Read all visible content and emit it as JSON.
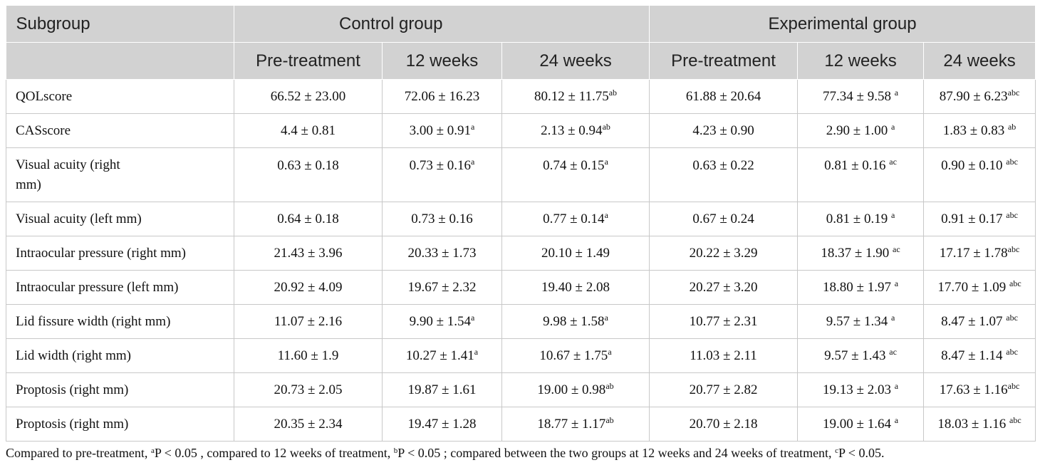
{
  "header": {
    "subgroup": "Subgroup",
    "control_group": "Control group",
    "experimental_group": "Experimental group",
    "columns": [
      "Pre-treatment",
      "12 weeks",
      "24 weeks",
      "Pre-treatment",
      "12 weeks",
      "24 weeks"
    ]
  },
  "rows": [
    {
      "label": "QOLscore",
      "cells": [
        {
          "v": "66.52 ± 23.00",
          "s": ""
        },
        {
          "v": "72.06 ± 16.23",
          "s": ""
        },
        {
          "v": "80.12 ± 11.75",
          "s": "ab"
        },
        {
          "v": "61.88 ± 20.64",
          "s": ""
        },
        {
          "v": "77.34 ± 9.58 ",
          "s": "a"
        },
        {
          "v": "87.90 ± 6.23",
          "s": "abc"
        }
      ]
    },
    {
      "label": "CASscore",
      "cells": [
        {
          "v": "4.4 ± 0.81",
          "s": ""
        },
        {
          "v": "3.00 ± 0.91",
          "s": "a"
        },
        {
          "v": "2.13 ± 0.94",
          "s": "ab"
        },
        {
          "v": "4.23 ± 0.90",
          "s": ""
        },
        {
          "v": "2.90 ± 1.00 ",
          "s": "a"
        },
        {
          "v": "1.83 ± 0.83 ",
          "s": "ab"
        }
      ]
    },
    {
      "label": "Visual acuity (right mm)",
      "cells": [
        {
          "v": "0.63 ± 0.18",
          "s": ""
        },
        {
          "v": "0.73 ± 0.16",
          "s": "a"
        },
        {
          "v": "0.74 ± 0.15",
          "s": "a"
        },
        {
          "v": "0.63 ± 0.22",
          "s": ""
        },
        {
          "v": "0.81 ± 0.16 ",
          "s": "ac"
        },
        {
          "v": "0.90 ± 0.10 ",
          "s": "abc"
        }
      ]
    },
    {
      "label": "Visual acuity (left mm)",
      "cells": [
        {
          "v": "0.64 ± 0.18",
          "s": ""
        },
        {
          "v": "0.73 ± 0.16",
          "s": ""
        },
        {
          "v": "0.77 ± 0.14",
          "s": "a"
        },
        {
          "v": "0.67 ± 0.24",
          "s": ""
        },
        {
          "v": "0.81 ± 0.19 ",
          "s": "a"
        },
        {
          "v": "0.91 ± 0.17 ",
          "s": "abc"
        }
      ]
    },
    {
      "label": "Intraocular pressure (right mm)",
      "cells": [
        {
          "v": "21.43 ± 3.96",
          "s": ""
        },
        {
          "v": "20.33 ± 1.73",
          "s": ""
        },
        {
          "v": "20.10 ± 1.49",
          "s": ""
        },
        {
          "v": "20.22 ± 3.29",
          "s": ""
        },
        {
          "v": "18.37 ± 1.90 ",
          "s": "ac"
        },
        {
          "v": "17.17 ± 1.78",
          "s": "abc"
        }
      ]
    },
    {
      "label": "Intraocular pressure (left mm)",
      "cells": [
        {
          "v": "20.92 ± 4.09",
          "s": ""
        },
        {
          "v": "19.67 ± 2.32",
          "s": ""
        },
        {
          "v": "19.40 ± 2.08",
          "s": ""
        },
        {
          "v": "20.27 ± 3.20",
          "s": ""
        },
        {
          "v": "18.80 ± 1.97 ",
          "s": "a"
        },
        {
          "v": "17.70 ± 1.09 ",
          "s": "abc"
        }
      ]
    },
    {
      "label": "Lid fissure width (right mm)",
      "cells": [
        {
          "v": "11.07 ± 2.16",
          "s": ""
        },
        {
          "v": "9.90 ± 1.54",
          "s": "a"
        },
        {
          "v": "9.98 ± 1.58",
          "s": "a"
        },
        {
          "v": "10.77 ± 2.31",
          "s": ""
        },
        {
          "v": "9.57 ± 1.34 ",
          "s": "a"
        },
        {
          "v": "8.47 ± 1.07 ",
          "s": "abc"
        }
      ]
    },
    {
      "label": "Lid width (right mm)",
      "cells": [
        {
          "v": "11.60 ± 1.9",
          "s": ""
        },
        {
          "v": "10.27 ± 1.41",
          "s": "a"
        },
        {
          "v": "10.67 ± 1.75",
          "s": "a"
        },
        {
          "v": "11.03 ± 2.11",
          "s": ""
        },
        {
          "v": "9.57 ± 1.43 ",
          "s": "ac"
        },
        {
          "v": "8.47 ± 1.14 ",
          "s": "abc"
        }
      ]
    },
    {
      "label": "Proptosis (right mm)",
      "cells": [
        {
          "v": "20.73 ± 2.05",
          "s": ""
        },
        {
          "v": "19.87 ± 1.61",
          "s": ""
        },
        {
          "v": "19.00 ± 0.98",
          "s": "ab"
        },
        {
          "v": "20.77 ± 2.82",
          "s": ""
        },
        {
          "v": "19.13 ± 2.03 ",
          "s": "a"
        },
        {
          "v": "17.63 ± 1.16",
          "s": "abc"
        }
      ]
    },
    {
      "label": "Proptosis (right mm)",
      "cells": [
        {
          "v": "20.35 ± 2.34",
          "s": ""
        },
        {
          "v": "19.47 ± 1.28",
          "s": ""
        },
        {
          "v": "18.77 ± 1.17",
          "s": "ab"
        },
        {
          "v": "20.70 ± 2.18",
          "s": ""
        },
        {
          "v": "19.00 ± 1.64 ",
          "s": "a"
        },
        {
          "v": "18.03 ± 1.16 ",
          "s": "abc"
        }
      ]
    }
  ],
  "footnote": {
    "p1": "Compared to pre-treatment, ",
    "s1": "a",
    "p2": "P < 0.05 , compared to 12 weeks of treatment, ",
    "s2": "b",
    "p3": "P < 0.05 ; compared between the two groups at 12 weeks and 24 weeks of treatment, ",
    "s3": "c",
    "p4": "P < 0.05."
  }
}
